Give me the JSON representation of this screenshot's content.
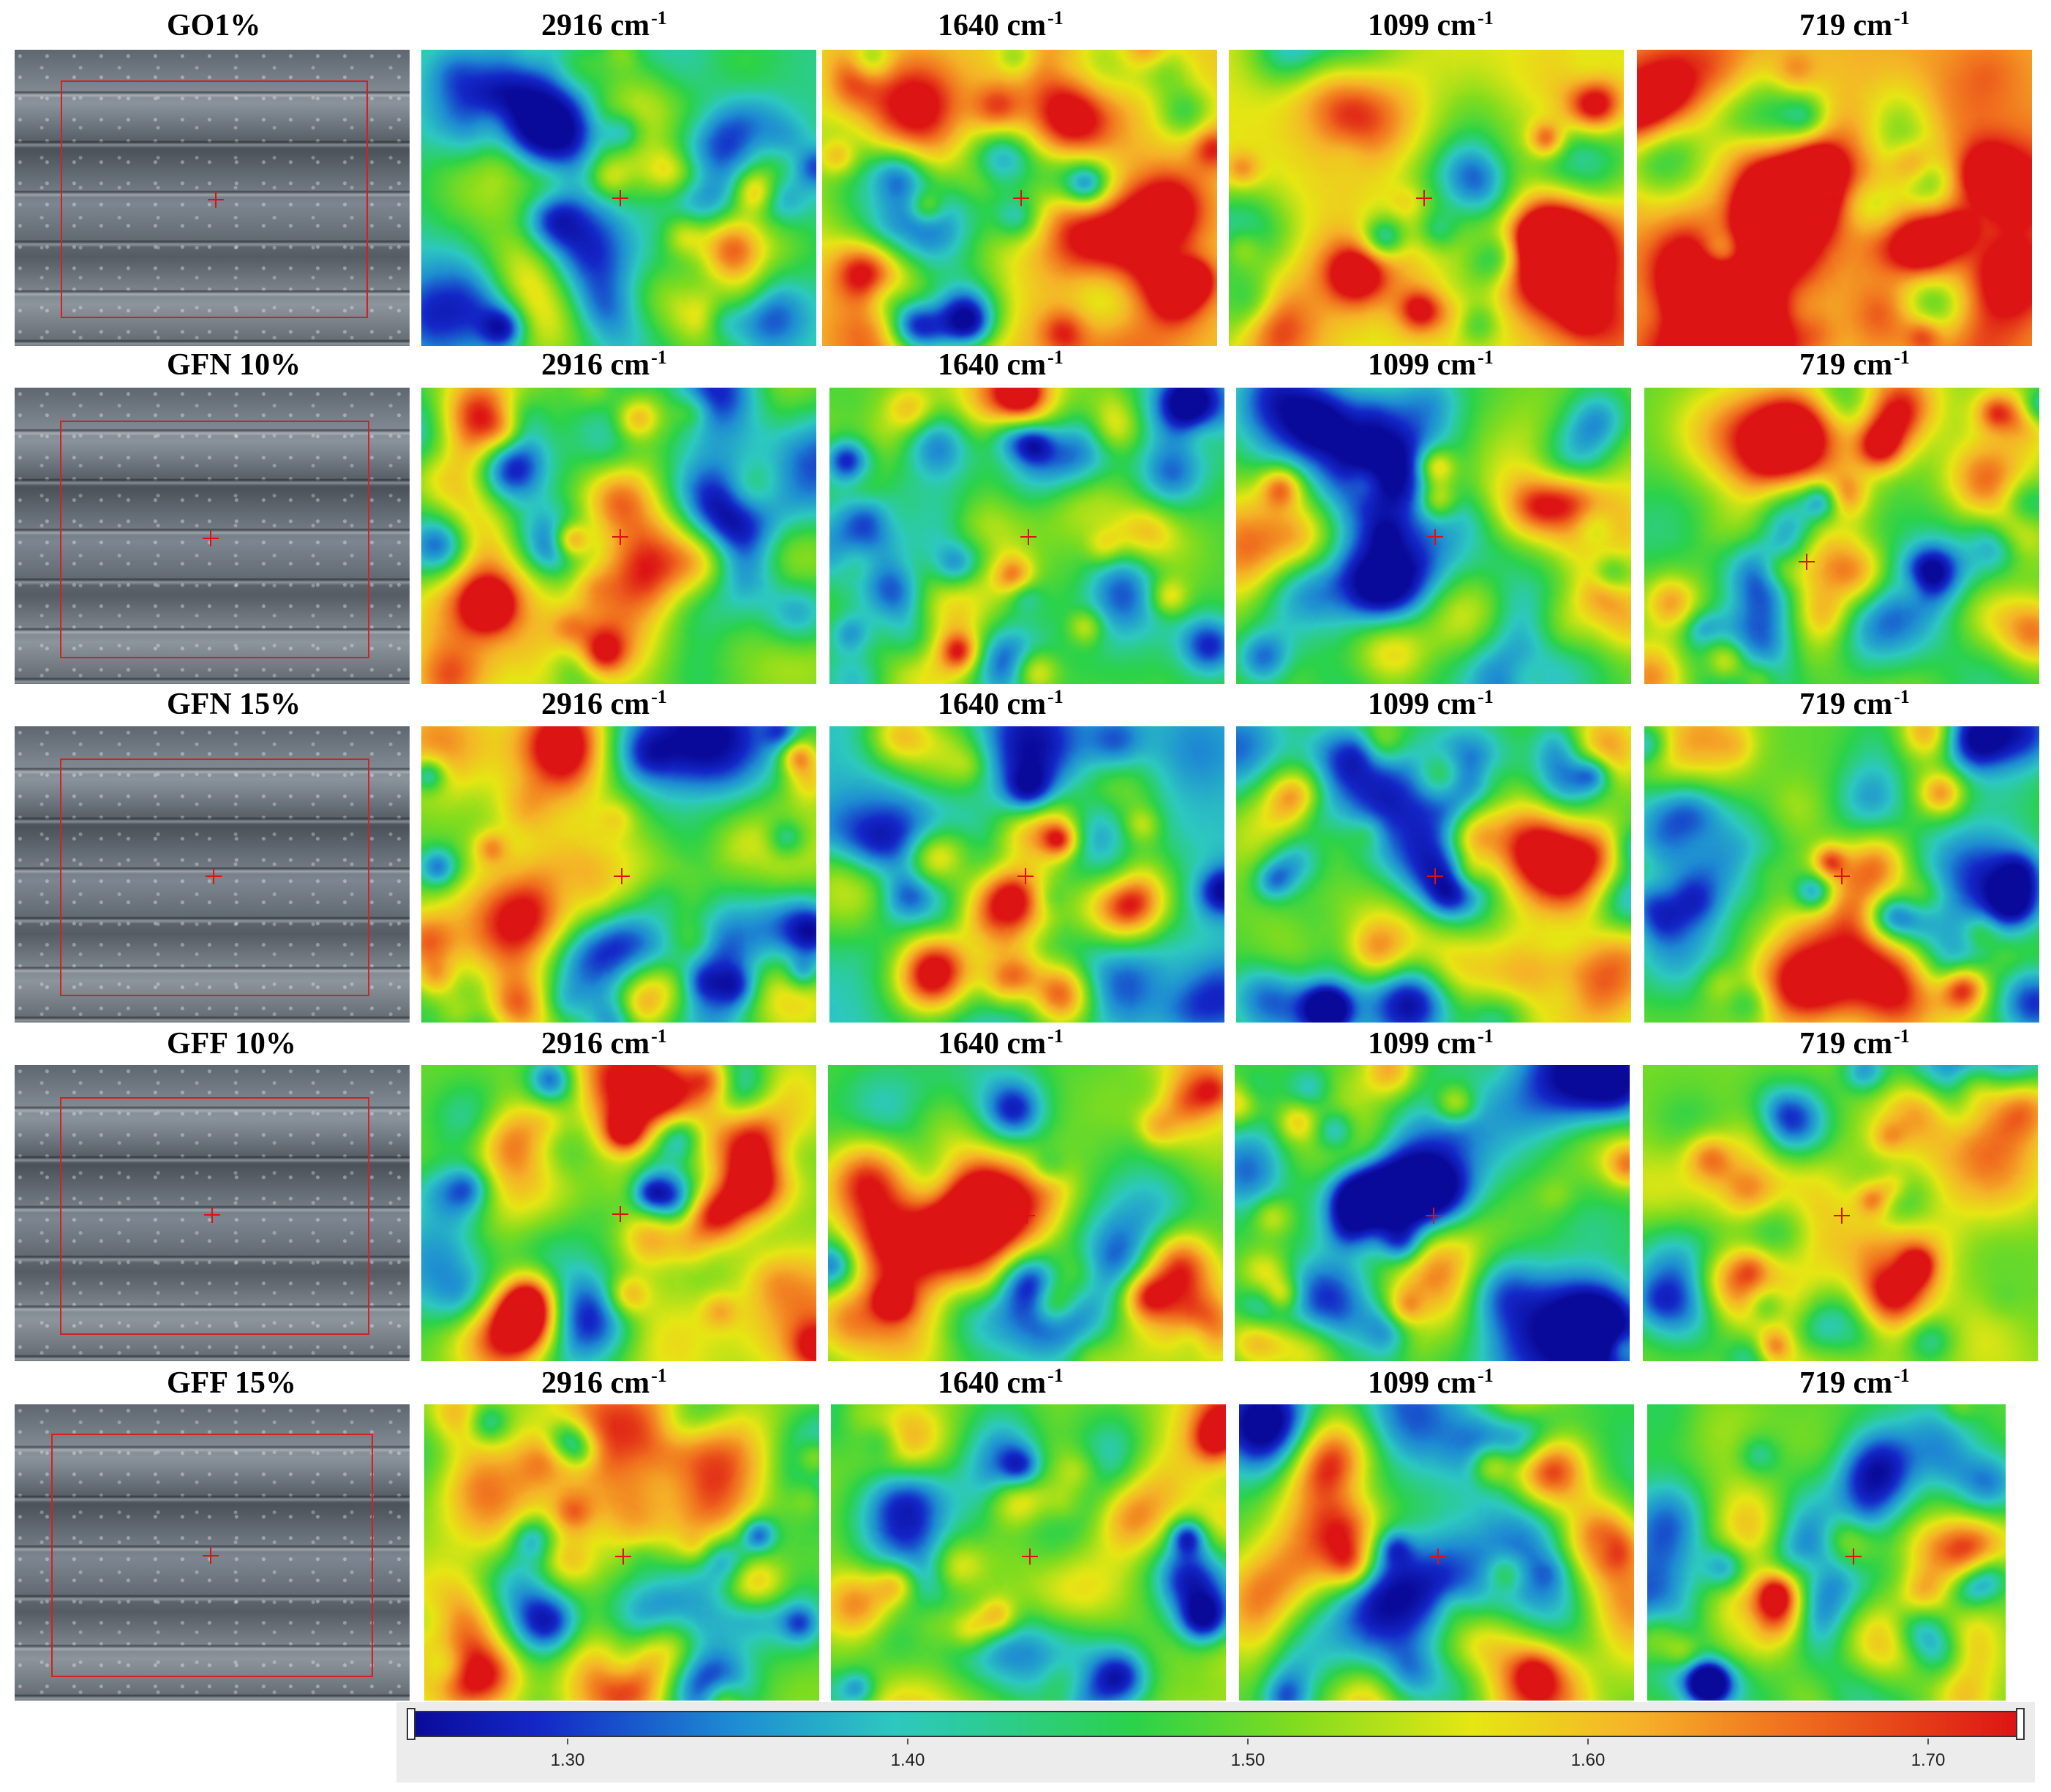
{
  "rows": [
    {
      "label": "GO1%"
    },
    {
      "label": "GFN 10%"
    },
    {
      "label": "GFN 15%"
    },
    {
      "label": "GFF 10%"
    },
    {
      "label": "GFF 15%"
    }
  ],
  "columns": [
    {
      "number": "2916",
      "unit": "cm",
      "exponent": "-1"
    },
    {
      "number": "1640",
      "unit": "cm",
      "exponent": "-1"
    },
    {
      "number": "1099",
      "unit": "cm",
      "exponent": "-1"
    },
    {
      "number": "719",
      "unit": "cm",
      "exponent": "-1"
    }
  ],
  "colorbar": {
    "ticks": [
      "1.30",
      "1.40",
      "1.50",
      "1.60",
      "1.70"
    ],
    "palette": [
      "#0a0a9a",
      "#1428c8",
      "#1e8cd2",
      "#2dc8c0",
      "#2bd24a",
      "#82dc1e",
      "#e6e614",
      "#f5b428",
      "#f06e1e",
      "#dc1414"
    ]
  },
  "colors": {
    "roi_box": "#d32020",
    "crosshair": "#e01010",
    "colorbar_panel": "#ececec"
  }
}
